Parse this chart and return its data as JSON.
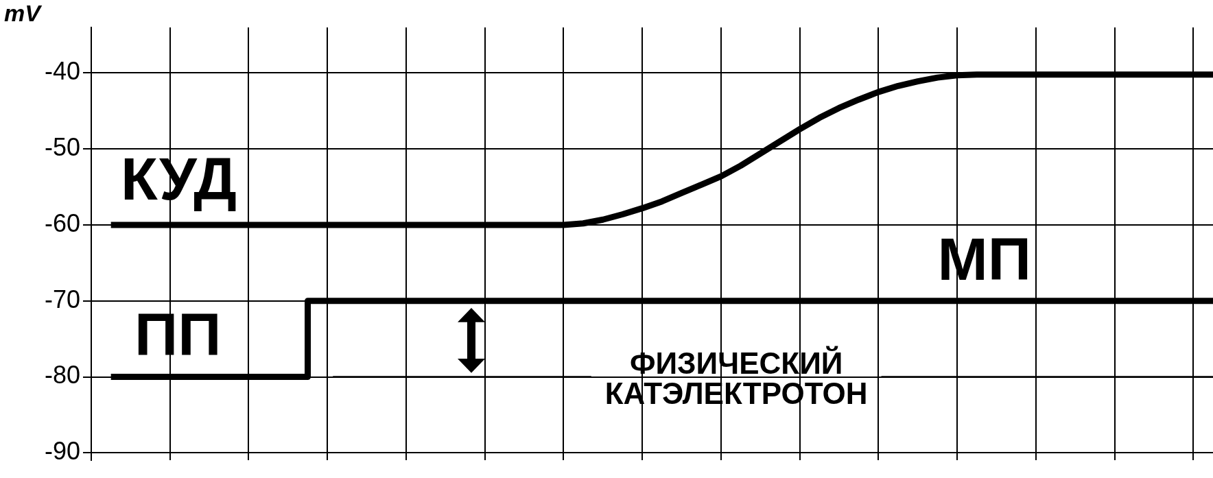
{
  "chart_data": {
    "type": "line",
    "ylabel": "mV",
    "categories": [
      null,
      null,
      null,
      null,
      null,
      null,
      null,
      null,
      null,
      null,
      null,
      null,
      null,
      null,
      null,
      null,
      null,
      null,
      null,
      null,
      null,
      null,
      null,
      null,
      null,
      null,
      null,
      null,
      null,
      null,
      null,
      null,
      null,
      null,
      null,
      null,
      null,
      null,
      null,
      null,
      null,
      null,
      null,
      null,
      null,
      null,
      null,
      null,
      null,
      null,
      null,
      null,
      null,
      null,
      null,
      null,
      null,
      null
    ],
    "series": [
      {
        "color": "#000000",
        "values": [
          null,
          -60,
          -60,
          -60,
          -60,
          -60,
          -60,
          -60,
          -60,
          -60,
          -60,
          -60,
          -60,
          -60,
          -60,
          -60,
          -60,
          -60,
          -60,
          -60,
          -60,
          -60,
          -60,
          -60,
          -60,
          -59.8,
          -59.3,
          -58.6,
          -57.8,
          -56.9,
          -55.8,
          -54.7,
          -53.6,
          -52.2,
          -50.6,
          -49,
          -47.4,
          -45.9,
          -44.6,
          -43.5,
          -42.5,
          -41.7,
          -41.1,
          -40.6,
          -40.3,
          -40.2,
          -40.2,
          -40.2,
          -40.2,
          -40.2,
          -40.2,
          -40.2,
          -40.2,
          -40.2,
          -40.2,
          -40.2,
          -40.2,
          -40.2
        ]
      },
      {
        "type": "step",
        "color": "#000000",
        "values": [
          null,
          -80,
          -80,
          -80,
          -80,
          -80,
          -80,
          -80,
          -80,
          -80,
          -80,
          -80,
          -70,
          -70,
          -70,
          -70,
          -70,
          -70,
          -70,
          -70,
          -70,
          -70,
          -70,
          -70,
          -70,
          -70,
          -70,
          -70,
          -70,
          -70,
          -70,
          -70,
          -70,
          -70,
          -70,
          -70,
          -70,
          -70,
          -70,
          -70,
          -70,
          -70,
          -70,
          -70,
          -70,
          -70,
          -70,
          -70,
          -70,
          -70,
          -70,
          -70,
          -70,
          -70,
          -70,
          -70,
          -70,
          -70
        ]
      }
    ],
    "ylim": [
      -91,
      -34
    ],
    "yticks": [
      -90,
      -80,
      -70,
      -60,
      -50,
      -40
    ],
    "annotations": [
      {
        "text": "КУД",
        "y": -60
      },
      {
        "text": "ПП",
        "y": -80
      },
      {
        "text": "МП",
        "y": -70
      }
    ],
    "ref_lines": [
      {
        "axis": "y",
        "value": -80,
        "label": "ФИЗИЧЕСКИЙ\nКАТЭЛЕКТРОТОН"
      }
    ],
    "grid": true,
    "legend": false,
    "marker": "none",
    "line_style": "solid"
  }
}
